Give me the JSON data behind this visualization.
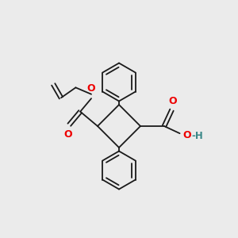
{
  "bg_color": "#ebebeb",
  "line_color": "#1a1a1a",
  "oxygen_color": "#ee0000",
  "hydrogen_color": "#3a8888",
  "figsize": [
    3.0,
    3.0
  ],
  "dpi": 100,
  "xlim": [
    -4.5,
    5.5
  ],
  "ylim": [
    -4.5,
    5.5
  ]
}
